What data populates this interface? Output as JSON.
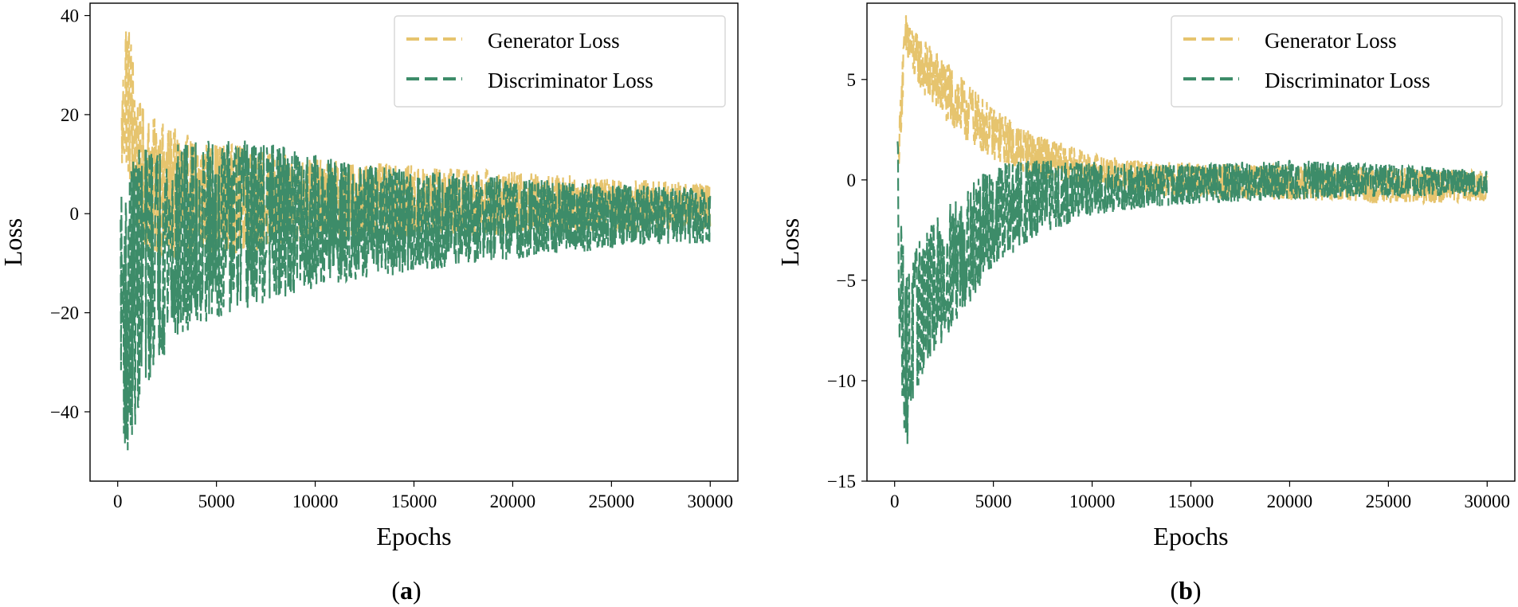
{
  "colors": {
    "generator": "#e6c46e",
    "discriminator": "#3d8c69"
  },
  "chart_data": [
    {
      "panel": "a",
      "panel_label": {
        "open": "(",
        "letter": "a",
        "close": ")"
      },
      "type": "line",
      "xlabel": "Epochs",
      "ylabel": "Loss",
      "xlim": [
        -1400,
        31400
      ],
      "ylim": [
        -54,
        42.5
      ],
      "xticks": [
        0,
        5000,
        10000,
        15000,
        20000,
        25000,
        30000
      ],
      "yticks": [
        -40,
        -20,
        0,
        20,
        40
      ],
      "ytick_labels": [
        "−40",
        "−20",
        "0",
        "20",
        "40"
      ],
      "legend_position": "top-right",
      "series": [
        {
          "name": "Generator Loss",
          "style": "dashed",
          "envelope": {
            "x": [
              200,
              400,
              700,
              1000,
              1500,
              2500,
              4000,
              6000,
              8000,
              10000,
              14000,
              18000,
              22000,
              26000,
              30000
            ],
            "high": [
              22,
              41,
              36,
              24,
              20,
              18,
              15,
              14,
              12,
              11,
              10,
              9,
              8,
              7,
              6
            ],
            "low": [
              8,
              10,
              4,
              -4,
              -8,
              -10,
              -9,
              -8,
              -7,
              -6,
              -5,
              -4.5,
              -4,
              -3.5,
              -3
            ]
          }
        },
        {
          "name": "Discriminator Loss",
          "style": "dashed",
          "envelope": {
            "x": [
              150,
              300,
              500,
              800,
              1200,
              2000,
              3000,
              4500,
              6000,
              8000,
              10000,
              12500,
              15000,
              18000,
              21000,
              25000,
              30000
            ],
            "high": [
              5,
              2,
              6,
              12,
              14,
              14,
              14,
              15,
              15,
              14,
              12,
              10,
              9,
              8,
              7,
              6,
              5
            ],
            "low": [
              -30,
              -45,
              -51,
              -44,
              -38,
              -30,
              -26,
              -22,
              -20,
              -18,
              -15,
              -13,
              -12,
              -10,
              -9,
              -7,
              -6
            ]
          }
        }
      ]
    },
    {
      "panel": "b",
      "panel_label": {
        "open": "(",
        "letter": "b",
        "close": ")"
      },
      "type": "line",
      "xlabel": "Epochs",
      "ylabel": "Loss",
      "xlim": [
        -1400,
        31400
      ],
      "ylim": [
        -15,
        8.8
      ],
      "xticks": [
        0,
        5000,
        10000,
        15000,
        20000,
        25000,
        30000
      ],
      "yticks": [
        -15,
        -10,
        -5,
        0,
        5
      ],
      "ytick_labels": [
        "−15",
        "−10",
        "−5",
        "0",
        "5"
      ],
      "legend_position": "top-right",
      "series": [
        {
          "name": "Generator Loss",
          "style": "dashed",
          "envelope": {
            "x": [
              200,
              400,
              600,
              900,
              1500,
              2500,
              3500,
              5000,
              6500,
              8000,
              10000,
              12000,
              14000,
              17000,
              20000,
              25000,
              30000
            ],
            "high": [
              2,
              6.5,
              8.5,
              7.5,
              7,
              6,
              5,
              3.6,
              2.6,
              2,
              1.3,
              1,
              0.9,
              0.8,
              0.7,
              0.6,
              0.5
            ],
            "low": [
              0.5,
              3.5,
              5.8,
              5.2,
              4.2,
              3,
              2,
              1,
              0.3,
              0,
              -0.3,
              -0.6,
              -0.8,
              -0.9,
              -1,
              -1.2,
              -1.1
            ]
          }
        },
        {
          "name": "Discriminator Loss",
          "style": "dashed",
          "envelope": {
            "x": [
              150,
              250,
              400,
              600,
              1000,
              1500,
              2500,
              3500,
              5000,
              6500,
              8000,
              10000,
              12000,
              15000,
              20000,
              25000,
              30000
            ],
            "high": [
              2.6,
              0.5,
              -3,
              -4.5,
              -3.5,
              -2.5,
              -1.5,
              -0.5,
              0.8,
              1,
              1,
              0.9,
              0.8,
              0.8,
              1,
              0.8,
              0.5
            ],
            "low": [
              -2,
              -8,
              -11.5,
              -13.5,
              -11,
              -9.5,
              -8,
              -6.5,
              -4.5,
              -3.3,
              -2.5,
              -1.8,
              -1.5,
              -1.2,
              -1,
              -0.8,
              -0.8
            ]
          }
        }
      ]
    }
  ]
}
